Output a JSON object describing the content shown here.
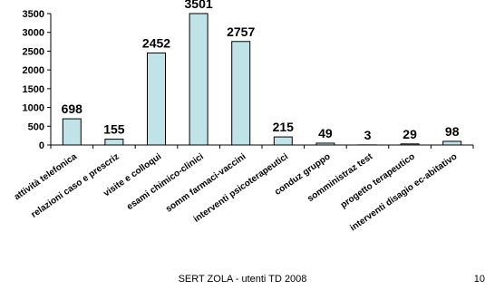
{
  "chart_data": {
    "type": "bar",
    "categories": [
      "attività telefonica",
      "relazioni caso e prescriz",
      "visite e colloqui",
      "esami chimico-clinici",
      "somm farmaci-vaccini",
      "interventi psicoterapeutici",
      "conduz gruppo",
      "somministraz test",
      "progetto terapeutico",
      "interventi disagio ec-abitativo"
    ],
    "values": [
      698,
      155,
      2452,
      3501,
      2757,
      215,
      49,
      3,
      29,
      98
    ],
    "data_labels": [
      "698",
      "155",
      "2452",
      "3501",
      "2757",
      "215",
      "49",
      "3",
      "29",
      "98"
    ],
    "ylim": [
      0,
      3500
    ],
    "yticks": [
      "0",
      "500",
      "1000",
      "1500",
      "2000",
      "2500",
      "3000",
      "3500"
    ],
    "grid": false,
    "legend": "none",
    "colors": {
      "bar_fill": "#bfe3e6",
      "bar_stroke": "#000000",
      "axis": "#000000"
    }
  },
  "footer": {
    "caption": "SERT ZOLA - utenti TD 2008",
    "page_number": "10"
  }
}
